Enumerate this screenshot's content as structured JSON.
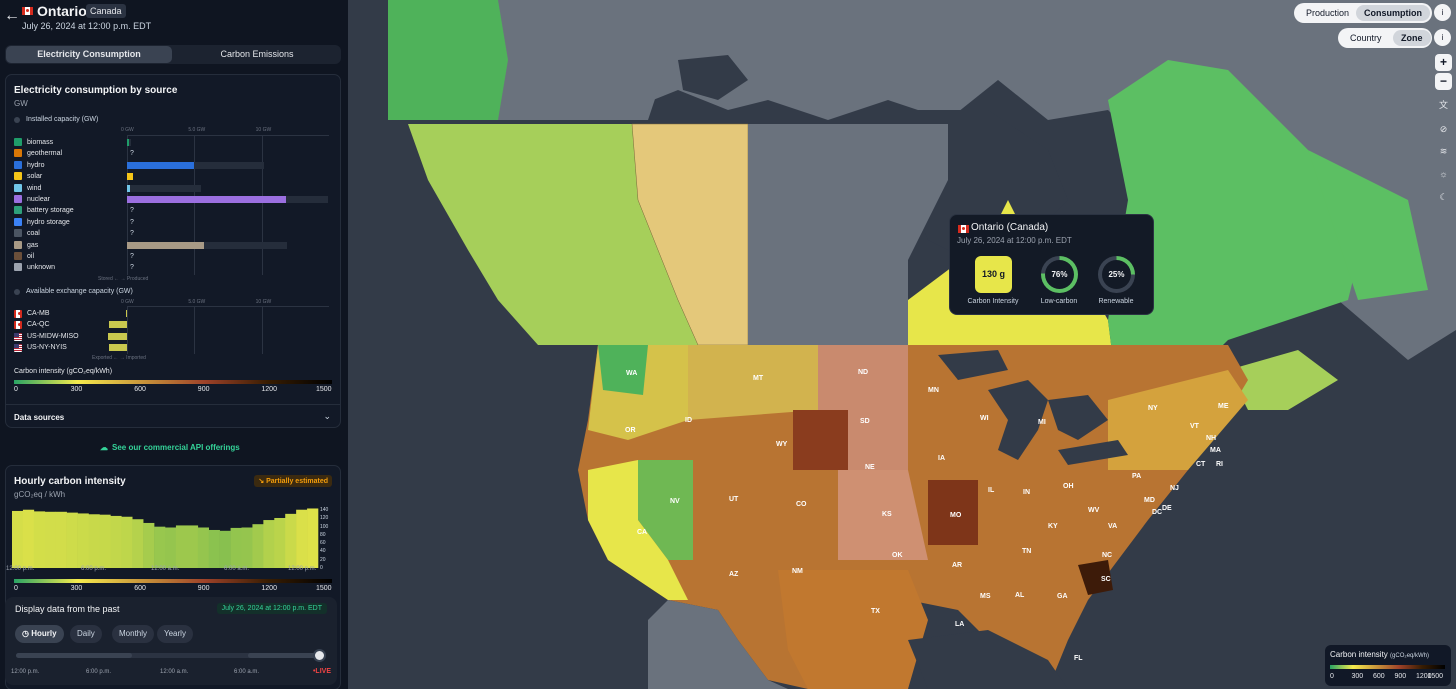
{
  "zone": {
    "name": "Ontario",
    "country": "Canada",
    "datetime": "July 26, 2024 at 12:00 p.m. EDT"
  },
  "tabs": {
    "consumption": "Electricity Consumption",
    "emissions": "Carbon Emissions"
  },
  "source_chart": {
    "title": "Electricity consumption by source",
    "unit": "GW",
    "installed_label": "Installed capacity (GW)",
    "exchange_label": "Available exchange capacity (GW)",
    "axis_ticks": [
      "0 GW",
      "5.0 GW",
      "10 GW"
    ],
    "stored_produced": "Stored ←  → Produced",
    "exported_imported": "Exported ←  → Imported",
    "sources": [
      {
        "label": "biomass",
        "value": 0.05,
        "capacity": 0.3,
        "color": "#1f9d6a",
        "icon": "leaf-icon",
        "unknown": false
      },
      {
        "label": "geothermal",
        "value": null,
        "capacity": null,
        "color": "#d97706",
        "icon": "geothermal-icon",
        "unknown": true
      },
      {
        "label": "hydro",
        "value": 5.0,
        "capacity": 10.2,
        "color": "#2a6fdb",
        "icon": "water-icon",
        "unknown": false
      },
      {
        "label": "solar",
        "value": 0.45,
        "capacity": 0.45,
        "color": "#f5c518",
        "icon": "sun-icon",
        "unknown": false
      },
      {
        "label": "wind",
        "value": 0.2,
        "capacity": 5.5,
        "color": "#71c6e8",
        "icon": "wind-icon",
        "unknown": false
      },
      {
        "label": "nuclear",
        "value": 11.8,
        "capacity": 14.9,
        "color": "#9b6fe0",
        "icon": "atom-icon",
        "unknown": false
      },
      {
        "label": "battery storage",
        "value": null,
        "capacity": null,
        "color": "#2ea07b",
        "icon": "battery-icon",
        "unknown": true
      },
      {
        "label": "hydro storage",
        "value": null,
        "capacity": null,
        "color": "#3b82f6",
        "icon": "water-drop-icon",
        "unknown": true
      },
      {
        "label": "coal",
        "value": null,
        "capacity": null,
        "color": "#4b5563",
        "icon": "coal-icon",
        "unknown": true
      },
      {
        "label": "gas",
        "value": 5.7,
        "capacity": 11.9,
        "color": "#a89a86",
        "icon": "flame-icon",
        "unknown": false
      },
      {
        "label": "oil",
        "value": null,
        "capacity": null,
        "color": "#6b4f3a",
        "icon": "oil-drop-icon",
        "unknown": true
      },
      {
        "label": "unknown",
        "value": null,
        "capacity": null,
        "color": "#9ca3af",
        "icon": "question-icon",
        "unknown": true
      }
    ],
    "exchanges": [
      {
        "label": "CA-MB",
        "value": -0.1,
        "flag": "ca"
      },
      {
        "label": "CA-QC",
        "value": -1.3,
        "flag": "ca"
      },
      {
        "label": "US-MIDW-MISO",
        "value": -1.4,
        "flag": "us"
      },
      {
        "label": "US-NY-NYIS",
        "value": -1.3,
        "flag": "us"
      }
    ],
    "ci_label": "Carbon intensity (gCO₂eq/kWh)",
    "ci_ticks": [
      "0",
      "300",
      "600",
      "900",
      "1200",
      "1500"
    ],
    "data_sources": "Data sources"
  },
  "api_link": "See our commercial API offerings",
  "hourly": {
    "title": "Hourly carbon intensity",
    "unit": "gCO₂eq / kWh",
    "badge": "Partially estimated",
    "y_ticks": [
      "140",
      "120",
      "100",
      "80",
      "60",
      "40",
      "20",
      "0"
    ],
    "x_ticks": [
      "12:00 p.m.",
      "6:00 p.m.",
      "12:00 a.m.",
      "6:00 a.m.",
      "12:00 p.m."
    ],
    "ci_ticks": [
      "0",
      "300",
      "600",
      "900",
      "1200",
      "1500"
    ],
    "values": [
      138,
      141,
      137,
      136,
      136,
      134,
      132,
      130,
      129,
      126,
      124,
      118,
      109,
      100,
      98,
      103,
      103,
      98,
      92,
      90,
      97,
      98,
      106,
      116,
      121,
      131,
      141,
      144
    ]
  },
  "past": {
    "title": "Display data from the past",
    "date_badge": "July 26, 2024 at 12:00 p.m. EDT",
    "buttons": [
      "Hourly",
      "Daily",
      "Monthly",
      "Yearly"
    ],
    "ticks": [
      "12:00 p.m.",
      "6:00 p.m.",
      "12:00 a.m.",
      "6:00 a.m."
    ],
    "live": "•LIVE"
  },
  "map_controls": {
    "production": "Production",
    "consumption": "Consumption",
    "country": "Country",
    "zone": "Zone",
    "info": "i",
    "zoom_in": "+",
    "zoom_out": "−"
  },
  "tooltip": {
    "zone": "Ontario (Canada)",
    "datetime": "July 26, 2024 at 12:00 p.m. EDT",
    "carbon_intensity": "130 g",
    "low_carbon": "76%",
    "renewable": "25%",
    "low_carbon_fraction": 0.76,
    "renewable_fraction": 0.25,
    "labels": [
      "Carbon Intensity",
      "Low-carbon",
      "Renewable"
    ]
  },
  "map_legend": {
    "title": "Carbon intensity",
    "unit": "(gCO₂eq/kWh)",
    "ticks": [
      "0",
      "300",
      "600",
      "900",
      "1200",
      "1500"
    ]
  },
  "state_labels": [
    "WA",
    "MT",
    "ND",
    "MN",
    "OR",
    "ID",
    "WY",
    "SD",
    "WI",
    "MI",
    "NY",
    "VT",
    "NH",
    "ME",
    "MA",
    "CT",
    "RI",
    "PA",
    "NJ",
    "IA",
    "NE",
    "NV",
    "UT",
    "CO",
    "KS",
    "MO",
    "IL",
    "IN",
    "OH",
    "WV",
    "VA",
    "MD",
    "DE",
    "DC",
    "KY",
    "CA",
    "AZ",
    "NM",
    "OK",
    "AR",
    "TN",
    "NC",
    "SC",
    "MS",
    "AL",
    "GA",
    "TX",
    "LA",
    "FL"
  ]
}
